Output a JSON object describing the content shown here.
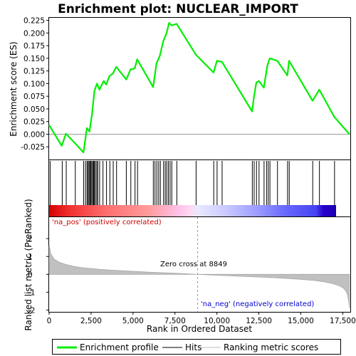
{
  "chart_data": {
    "type": "line",
    "title": "Enrichment plot: NUCLEAR_IMPORT",
    "top_panel": {
      "ylabel": "Enrichment score (ES)",
      "ylim": [
        -0.05,
        0.23
      ],
      "yticks": [
        -0.025,
        0.0,
        0.025,
        0.05,
        0.075,
        0.1,
        0.125,
        0.15,
        0.175,
        0.2,
        0.225
      ],
      "ytick_labels": [
        "-0.025",
        "0.000",
        "0.025",
        "0.050",
        "0.075",
        "0.100",
        "0.125",
        "0.150",
        "0.175",
        "0.200",
        "0.225"
      ],
      "line_color": "#00ee00",
      "series": [
        {
          "name": "Enrichment profile",
          "x": [
            0,
            750,
            1000,
            1550,
            2050,
            2250,
            2400,
            2550,
            2700,
            2850,
            3000,
            3250,
            3400,
            3600,
            3800,
            4000,
            4600,
            4850,
            5100,
            5250,
            6200,
            6400,
            6600,
            6800,
            7000,
            7150,
            7300,
            7600,
            8750,
            9800,
            10000,
            10300,
            12100,
            12200,
            12350,
            12500,
            12800,
            13000,
            13150,
            13600,
            14200,
            14300,
            15700,
            16100,
            17000,
            17900
          ],
          "y": [
            0.018,
            -0.023,
            0.001,
            -0.018,
            -0.036,
            0.012,
            0.005,
            0.038,
            0.085,
            0.1,
            0.088,
            0.105,
            0.098,
            0.115,
            0.12,
            0.133,
            0.108,
            0.128,
            0.13,
            0.148,
            0.093,
            0.14,
            0.155,
            0.183,
            0.2,
            0.22,
            0.215,
            0.218,
            0.157,
            0.122,
            0.145,
            0.143,
            0.045,
            0.072,
            0.102,
            0.105,
            0.092,
            0.135,
            0.15,
            0.145,
            0.116,
            0.145,
            0.066,
            0.088,
            0.034,
            0.0
          ]
        }
      ]
    },
    "hits_panel": {
      "series_name": "Hits",
      "positions": [
        60,
        780,
        1020,
        1560,
        2060,
        2170,
        2260,
        2320,
        2380,
        2430,
        2480,
        2540,
        2600,
        2650,
        2700,
        2760,
        2840,
        2900,
        3010,
        3210,
        3420,
        3620,
        3820,
        4020,
        4600,
        4870,
        5120,
        5270,
        6210,
        6310,
        6420,
        6530,
        6630,
        6820,
        6920,
        7010,
        7110,
        7210,
        7310,
        7610,
        8760,
        9810,
        10010,
        10310,
        12110,
        12220,
        12360,
        12510,
        12810,
        12960,
        13060,
        13160,
        13610,
        14210,
        14310,
        15710,
        16110,
        17010
      ]
    },
    "bottom_panel": {
      "ylabel": "Ranked list metric (PreRanked)",
      "xlabel": "Rank in Ordered Dataset",
      "xlim": [
        0,
        17950
      ],
      "ylim": [
        -2.1,
        3.2
      ],
      "yticks": [
        -2,
        -1,
        0,
        1,
        2
      ],
      "ytick_labels": [
        "-2",
        "-1",
        "0",
        "1",
        "2"
      ],
      "xticks": [
        0,
        2500,
        5000,
        7500,
        10000,
        12500,
        15000,
        17500
      ],
      "xtick_labels": [
        "0",
        "2,500",
        "5,000",
        "7,500",
        "10,000",
        "12,500",
        "15,000",
        "17,500"
      ],
      "series_name": "Ranking metric scores",
      "curve_x": [
        0,
        100,
        300,
        600,
        1000,
        1500,
        2000,
        3000,
        4000,
        5000,
        6000,
        7000,
        8000,
        8849,
        10000,
        11000,
        12000,
        13000,
        14000,
        15000,
        15800,
        16400,
        16900,
        17300,
        17550,
        17700,
        17800,
        17870,
        17900
      ],
      "curve_y": [
        1.62,
        1.15,
        0.85,
        0.68,
        0.55,
        0.44,
        0.37,
        0.28,
        0.22,
        0.17,
        0.12,
        0.08,
        0.04,
        0.0,
        -0.05,
        -0.09,
        -0.13,
        -0.17,
        -0.22,
        -0.28,
        -0.34,
        -0.42,
        -0.52,
        -0.64,
        -0.78,
        -0.95,
        -1.2,
        -1.6,
        -1.9
      ],
      "zero_cross": 8849,
      "zero_cross_label": "Zero cross at 8849",
      "pos_label": "'na_pos' (positively correlated)",
      "neg_label": "'na_neg' (negatively correlated)",
      "pos_color": "#cc0000",
      "neg_color": "#0000cc"
    },
    "legend": {
      "placement": "bottom",
      "entries": [
        "Enrichment profile",
        "Hits",
        "Ranking metric scores"
      ]
    }
  }
}
